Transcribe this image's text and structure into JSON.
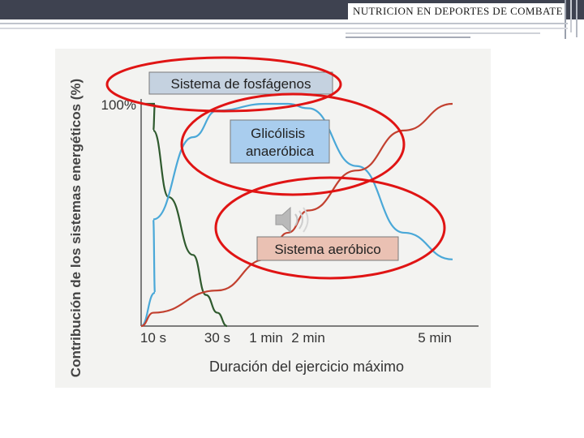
{
  "header": {
    "title": "NUTRICION EN DEPORTES DE COMBATE"
  },
  "colors": {
    "header_bar": "#3e4250",
    "fosfagenos": "#2f5a2e",
    "glicolisis": "#4aa8d8",
    "aerobico": "#c2402f",
    "highlight_ellipse": "#e01414",
    "label_fosfagenos_bg": "#c5d2e0",
    "label_glicolisis_bg": "#a9cdee",
    "label_aerobico_bg": "#eac1b3"
  },
  "icons": {
    "audio": "speaker-icon"
  },
  "chart_data": {
    "type": "line",
    "ylabel": "Contribución de los sistemas energéticos (%)",
    "xlabel": "Duración del ejercicio máximo",
    "y_tick_label": "100%",
    "ylim": [
      0,
      100
    ],
    "x_ticks": [
      "10 s",
      "30 s",
      "1 min",
      "2 min",
      "5 min"
    ],
    "grid": false,
    "series": [
      {
        "name": "Sistema de fosfágenos",
        "x": [
          "0",
          "5 s",
          "10 s",
          "15 s",
          "20 s",
          "25 s",
          "30 s",
          "40 s"
        ],
        "y": [
          100,
          100,
          88,
          58,
          32,
          14,
          6,
          0
        ]
      },
      {
        "name": "Glicólisis anaeróbica",
        "x": [
          "0",
          "5 s",
          "10 s",
          "20 s",
          "30 s",
          "1 min",
          "1.5 min",
          "2 min",
          "3 min",
          "4 min",
          "5 min"
        ],
        "y": [
          0,
          15,
          48,
          85,
          97,
          100,
          100,
          98,
          72,
          42,
          30
        ]
      },
      {
        "name": "Sistema aeróbico",
        "x": [
          "0",
          "10 s",
          "30 s",
          "1 min",
          "1.5 min",
          "2 min",
          "3 min",
          "4 min",
          "5 min"
        ],
        "y": [
          0,
          6,
          16,
          30,
          42,
          52,
          70,
          88,
          100
        ]
      }
    ]
  }
}
